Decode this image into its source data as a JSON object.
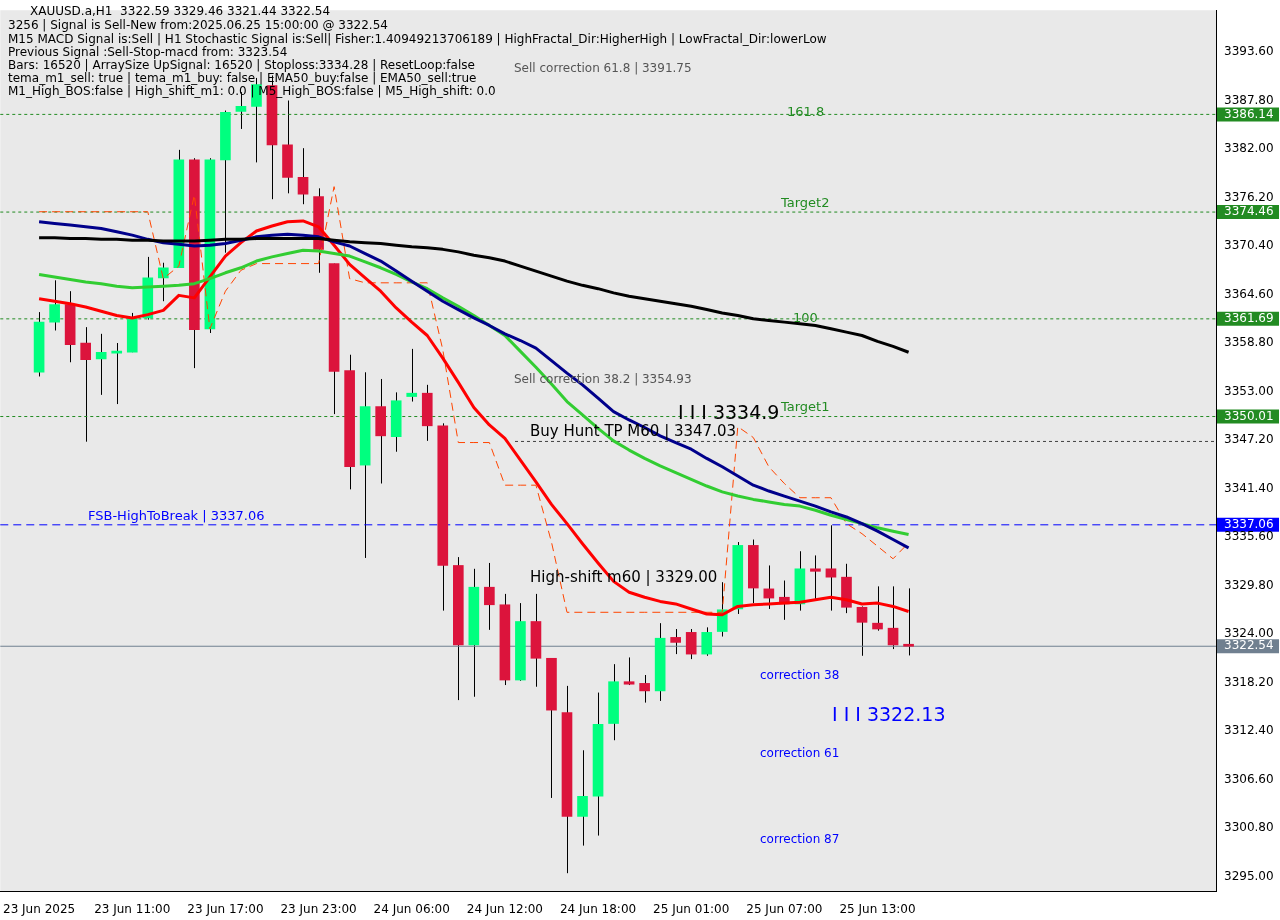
{
  "chart_data": {
    "type": "candlestick",
    "categories": [
      "23 Jun 2025",
      null,
      null,
      null,
      null,
      null,
      "23 Jun 11:00",
      null,
      null,
      null,
      null,
      null,
      "23 Jun 17:00",
      null,
      null,
      null,
      null,
      null,
      "23 Jun 23:00",
      null,
      null,
      null,
      null,
      null,
      "24 Jun 06:00",
      null,
      null,
      null,
      null,
      null,
      "24 Jun 12:00",
      null,
      null,
      null,
      null,
      null,
      "24 Jun 18:00",
      null,
      null,
      null,
      null,
      null,
      "25 Jun 01:00",
      null,
      null,
      null,
      null,
      null,
      "25 Jun 07:00",
      null,
      null,
      null,
      null,
      null,
      "25 Jun 13:00",
      null,
      null
    ],
    "ohlc": [
      [
        3355.3,
        3362.5,
        3354.8,
        3361.3
      ],
      [
        3361.3,
        3366.3,
        3360.3,
        3363.4
      ],
      [
        3363.4,
        3365.0,
        3356.5,
        3358.6
      ],
      [
        3358.8,
        3360.7,
        3347.0,
        3356.8
      ],
      [
        3356.9,
        3359.9,
        3352.6,
        3357.7
      ],
      [
        3357.6,
        3358.8,
        3351.5,
        3357.6
      ],
      [
        3357.7,
        3362.4,
        3357.7,
        3361.8
      ],
      [
        3361.8,
        3369.1,
        3361.6,
        3366.6
      ],
      [
        3366.6,
        3368.4,
        3363.8,
        3367.8
      ],
      [
        3367.8,
        3381.9,
        3367.8,
        3380.7
      ],
      [
        3380.7,
        3380.9,
        3355.8,
        3360.4
      ],
      [
        3360.5,
        3380.9,
        3360.0,
        3380.7
      ],
      [
        3380.7,
        3386.6,
        3369.6,
        3386.4
      ],
      [
        3386.5,
        3388.8,
        3384.4,
        3387.1
      ],
      [
        3387.1,
        3390.5,
        3380.4,
        3389.7
      ],
      [
        3389.6,
        3390.8,
        3376.0,
        3382.5
      ],
      [
        3382.5,
        3387.8,
        3376.7,
        3378.6
      ],
      [
        3378.6,
        3382.1,
        3375.4,
        3376.6
      ],
      [
        3376.3,
        3377.3,
        3367.2,
        3370.0
      ],
      [
        3368.3,
        3368.3,
        3350.3,
        3355.4
      ],
      [
        3355.5,
        3357.4,
        3341.3,
        3344.0
      ],
      [
        3344.2,
        3355.3,
        3333.1,
        3351.2
      ],
      [
        3351.2,
        3354.5,
        3342.0,
        3347.7
      ],
      [
        3347.6,
        3352.9,
        3345.8,
        3351.9
      ],
      [
        3352.4,
        3358.1,
        3351.8,
        3352.8
      ],
      [
        3352.8,
        3353.8,
        3347.1,
        3348.9
      ],
      [
        3348.9,
        3349.2,
        3326.8,
        3332.2
      ],
      [
        3332.2,
        3333.2,
        3316.1,
        3322.7
      ],
      [
        3322.7,
        3331.8,
        3316.5,
        3329.6
      ],
      [
        3329.6,
        3332.5,
        3324.5,
        3327.5
      ],
      [
        3327.5,
        3328.8,
        3317.9,
        3318.5
      ],
      [
        3318.5,
        3327.7,
        3318.4,
        3325.5
      ],
      [
        3325.5,
        3328.8,
        3317.7,
        3321.1
      ],
      [
        3321.1,
        3321.1,
        3304.4,
        3314.9
      ],
      [
        3314.6,
        3317.8,
        3295.4,
        3302.2
      ],
      [
        3302.2,
        3310.1,
        3298.7,
        3304.6
      ],
      [
        3304.6,
        3317.0,
        3299.9,
        3313.2
      ],
      [
        3313.3,
        3320.4,
        3311.3,
        3318.3
      ],
      [
        3318.3,
        3321.2,
        3317.9,
        3318.0
      ],
      [
        3318.1,
        3319.1,
        3315.8,
        3317.2
      ],
      [
        3317.2,
        3325.3,
        3316.0,
        3323.5
      ],
      [
        3323.6,
        3324.6,
        3321.6,
        3323.0
      ],
      [
        3324.2,
        3324.6,
        3321.0,
        3321.6
      ],
      [
        3321.6,
        3324.8,
        3321.4,
        3324.2
      ],
      [
        3324.3,
        3330.2,
        3323.7,
        3326.9
      ],
      [
        3327.0,
        3335.0,
        3326.4,
        3334.6
      ],
      [
        3334.6,
        3335.3,
        3327.7,
        3329.5
      ],
      [
        3329.4,
        3332.2,
        3327.0,
        3328.3
      ],
      [
        3328.4,
        3330.4,
        3325.7,
        3327.6
      ],
      [
        3327.6,
        3333.9,
        3326.8,
        3331.8
      ],
      [
        3331.8,
        3333.4,
        3328.1,
        3331.5
      ],
      [
        3331.8,
        3337.0,
        3326.8,
        3330.8
      ],
      [
        3330.8,
        3332.4,
        3326.5,
        3327.2
      ],
      [
        3327.2,
        3327.3,
        3321.4,
        3325.4
      ],
      [
        3325.3,
        3329.7,
        3324.4,
        3324.6
      ],
      [
        3324.7,
        3329.7,
        3322.2,
        3322.7
      ],
      [
        3322.59,
        3329.46,
        3321.44,
        3322.54
      ]
    ],
    "colors": [
      "#00ff7f",
      "#00ff7f",
      "#dc143c",
      "#dc143c",
      "#00ff7f",
      "#00ff7f",
      "#00ff7f",
      "#00ff7f",
      "#00ff7f",
      "#00ff7f",
      "#dc143c",
      "#00ff7f",
      "#00ff7f",
      "#00ff7f",
      "#00ff7f",
      "#dc143c",
      "#dc143c",
      "#dc143c",
      "#dc143c",
      "#dc143c",
      "#dc143c",
      "#00ff7f",
      "#dc143c",
      "#00ff7f",
      "#00ff7f",
      "#dc143c",
      "#dc143c",
      "#dc143c",
      "#00ff7f",
      "#dc143c",
      "#dc143c",
      "#00ff7f",
      "#dc143c",
      "#dc143c",
      "#dc143c",
      "#00ff7f",
      "#00ff7f",
      "#00ff7f",
      "#dc143c",
      "#dc143c",
      "#00ff7f",
      "#dc143c",
      "#dc143c",
      "#00ff7f",
      "#00ff7f",
      "#00ff7f",
      "#dc143c",
      "#dc143c",
      "#dc143c",
      "#00ff7f",
      "#dc143c",
      "#dc143c",
      "#dc143c",
      "#dc143c",
      "#dc143c",
      "#dc143c",
      "#dc143c"
    ],
    "series": [
      {
        "type": "line",
        "color": "#000000",
        "values": [
          3371.4,
          3371.4,
          3371.3,
          3371.3,
          3371.2,
          3371.2,
          3371.1,
          3371.1,
          3371.0,
          3371.0,
          3371.0,
          3371.1,
          3371.2,
          3371.2,
          3371.3,
          3371.3,
          3371.3,
          3371.3,
          3371.3,
          3371.1,
          3370.9,
          3370.8,
          3370.7,
          3370.5,
          3370.3,
          3370.2,
          3370.0,
          3369.7,
          3369.3,
          3369.0,
          3368.6,
          3368.0,
          3367.4,
          3366.8,
          3366.2,
          3365.7,
          3365.3,
          3364.8,
          3364.4,
          3364.1,
          3363.8,
          3363.5,
          3363.2,
          3362.8,
          3362.4,
          3362.1,
          3361.7,
          3361.5,
          3361.3,
          3361.1,
          3360.9,
          3360.5,
          3360.1,
          3359.7,
          3359.0,
          3358.4,
          3357.7
        ]
      },
      {
        "type": "line",
        "color": "#00008b",
        "values": [
          3373.3,
          3373.1,
          3372.9,
          3372.7,
          3372.5,
          3372.1,
          3371.7,
          3371.2,
          3370.8,
          3370.6,
          3370.4,
          3370.5,
          3370.7,
          3371.1,
          3371.5,
          3371.7,
          3371.8,
          3371.7,
          3371.5,
          3370.9,
          3370.4,
          3369.5,
          3368.6,
          3367.4,
          3366.2,
          3365.0,
          3363.8,
          3362.8,
          3361.8,
          3360.9,
          3359.9,
          3359.1,
          3358.2,
          3356.7,
          3355.2,
          3353.8,
          3352.2,
          3350.6,
          3349.6,
          3348.7,
          3347.7,
          3346.9,
          3346.1,
          3345.0,
          3344.0,
          3342.9,
          3341.8,
          3341.1,
          3340.5,
          3339.9,
          3339.3,
          3338.6,
          3338.0,
          3337.2,
          3336.3,
          3335.3,
          3334.3
        ]
      },
      {
        "type": "line",
        "color": "#32cd32",
        "values": [
          3367.0,
          3366.7,
          3366.4,
          3366.1,
          3365.9,
          3365.6,
          3365.4,
          3365.5,
          3365.6,
          3365.7,
          3365.9,
          3366.5,
          3367.2,
          3367.8,
          3368.6,
          3369.1,
          3369.5,
          3369.9,
          3369.8,
          3369.5,
          3369.2,
          3368.5,
          3367.8,
          3367.0,
          3366.1,
          3365.3,
          3364.2,
          3363.2,
          3362.1,
          3360.9,
          3359.7,
          3357.8,
          3355.9,
          3353.9,
          3351.8,
          3350.2,
          3348.6,
          3347.1,
          3346.0,
          3345.0,
          3344.1,
          3343.3,
          3342.5,
          3341.7,
          3341.0,
          3340.5,
          3340.1,
          3339.8,
          3339.5,
          3339.3,
          3338.8,
          3338.2,
          3337.7,
          3337.2,
          3336.7,
          3336.3,
          3335.9
        ]
      },
      {
        "type": "line",
        "color": "#ff0000",
        "values": [
          3364.1,
          3363.8,
          3363.5,
          3363.1,
          3362.6,
          3362.1,
          3361.8,
          3362.2,
          3362.7,
          3364.5,
          3364.2,
          3366.7,
          3369.2,
          3370.8,
          3372.2,
          3372.8,
          3373.3,
          3373.4,
          3372.7,
          3370.5,
          3368.2,
          3366.6,
          3365.0,
          3363.0,
          3361.3,
          3359.7,
          3357.0,
          3354.1,
          3351.1,
          3349.0,
          3347.4,
          3344.8,
          3342.2,
          3339.5,
          3337.2,
          3334.8,
          3332.5,
          3330.3,
          3329.0,
          3328.4,
          3327.9,
          3327.6,
          3327.0,
          3326.4,
          3326.3,
          3327.3,
          3327.5,
          3327.6,
          3327.7,
          3327.8,
          3328.1,
          3328.4,
          3328.1,
          3327.6,
          3327.7,
          3327.3,
          3326.7
        ]
      },
      {
        "type": "line",
        "color": "#ff4500",
        "line_style": "dashed",
        "values": [
          3374.5,
          3374.5,
          3374.5,
          3374.5,
          3374.5,
          3374.5,
          3374.5,
          3374.5,
          3366.5,
          3368.0,
          3376.5,
          3360.5,
          3365.0,
          3367.5,
          3368.3,
          3368.3,
          3368.3,
          3368.3,
          3368.3,
          3377.5,
          3366.5,
          3366.0,
          3366.0,
          3366.0,
          3366.0,
          3366.0,
          3358.0,
          3346.9,
          3346.9,
          3346.9,
          3341.8,
          3341.8,
          3341.8,
          3335.0,
          3326.6,
          3326.6,
          3326.6,
          3326.6,
          3326.6,
          3326.6,
          3326.6,
          3326.6,
          3326.6,
          3326.6,
          3326.6,
          3348.8,
          3347.5,
          3344.0,
          3342.0,
          3340.3,
          3340.3,
          3340.3,
          3337.2,
          3336.0,
          3334.5,
          3333.0,
          3334.9
        ]
      }
    ],
    "ylim": [
      3293.2,
      3398.6
    ],
    "yticks": [
      {
        "value": 3393.6,
        "label": "3393.60"
      },
      {
        "value": 3387.8,
        "label": "3387.80"
      },
      {
        "value": 3386.14,
        "label": "3386.14"
      },
      {
        "value": 3382.0,
        "label": "3382.00"
      },
      {
        "value": 3376.2,
        "label": "3376.20"
      },
      {
        "value": 3374.46,
        "label": "3374.46"
      },
      {
        "value": 3370.4,
        "label": "3370.40"
      },
      {
        "value": 3364.6,
        "label": "3364.60"
      },
      {
        "value": 3361.69,
        "label": "3361.69"
      },
      {
        "value": 3358.8,
        "label": "3358.80"
      },
      {
        "value": 3353.0,
        "label": "3353.00"
      },
      {
        "value": 3350.01,
        "label": "3350.01"
      },
      {
        "value": 3347.2,
        "label": "3347.20"
      },
      {
        "value": 3341.4,
        "label": "3341.40"
      },
      {
        "value": 3337.06,
        "label": "3337.06"
      },
      {
        "value": 3335.6,
        "label": "3335.60"
      },
      {
        "value": 3329.8,
        "label": "3329.80"
      },
      {
        "value": 3324.0,
        "label": "3324.00"
      },
      {
        "value": 3322.54,
        "label": "3322.54"
      },
      {
        "value": 3318.2,
        "label": "3318.20"
      },
      {
        "value": 3312.4,
        "label": "3312.40"
      },
      {
        "value": 3306.6,
        "label": "3306.60"
      },
      {
        "value": 3300.8,
        "label": "3300.80"
      },
      {
        "value": 3295.0,
        "label": "3295.00"
      }
    ],
    "ref_lines": [
      {
        "axis": "y",
        "value": 3386.14,
        "label": null,
        "color": "#228b22",
        "line_style": "dotted"
      },
      {
        "axis": "y",
        "value": 3374.46,
        "label": "Target2",
        "color": "#228b22",
        "line_style": "dotted"
      },
      {
        "axis": "y",
        "value": 3361.69,
        "label": null,
        "color": "#228b22",
        "line_style": "dotted"
      },
      {
        "axis": "y",
        "value": 3350.01,
        "label": "Target1",
        "color": "#228b22",
        "line_style": "dotted"
      },
      {
        "axis": "y",
        "value": 3347.03,
        "label": "Buy Hunt TP M60 | 3347.03",
        "color": "#404040",
        "line_style": "dotted"
      },
      {
        "axis": "y",
        "value": 3337.06,
        "label": "FSB-HighToBreak | 3337.06",
        "color": "#0000ff",
        "line_style": "dashed"
      },
      {
        "axis": "y",
        "value": 3322.54,
        "label": null,
        "color": "#708090",
        "line_style": "solid"
      }
    ],
    "annotations": [
      "XAUUSD.a,H1  3322.59 3329.46 3321.44 3322.54",
      "3256 | Signal is Sell-New from:2025.06.25 15:00:00 @ 3322.54",
      "M15 MACD Signal is:Sell | H1 Stochastic Signal is:Sell| Fisher:1.40949213706189 | HighFractal_Dir:HigherHigh | LowFractal_Dir:lowerLow",
      "Previous Signal :Sell-Stop-macd from: 3323.54",
      "Bars: 16520 | ArraySize UpSignal: 16520 | Stoploss:3334.28 | ResetLoop:false",
      "tema_m1_sell: true | tema_m1_buy: false | EMA50_buy:false | EMA50_sell:true",
      "M1_High_BOS:false | High_shift_m1: 0.0 | M5_High_BOS:false | M5_High_shift: 0.0",
      "Sell correction 61.8 | 3391.75",
      "Sell correction 38.2 | 3354.93",
      "High-shift m60 | 3329.00",
      "I I I 3334.9",
      "I I I 3322.13",
      "correction 38",
      "correction 61",
      "correction 87",
      "161.8",
      "100"
    ]
  }
}
